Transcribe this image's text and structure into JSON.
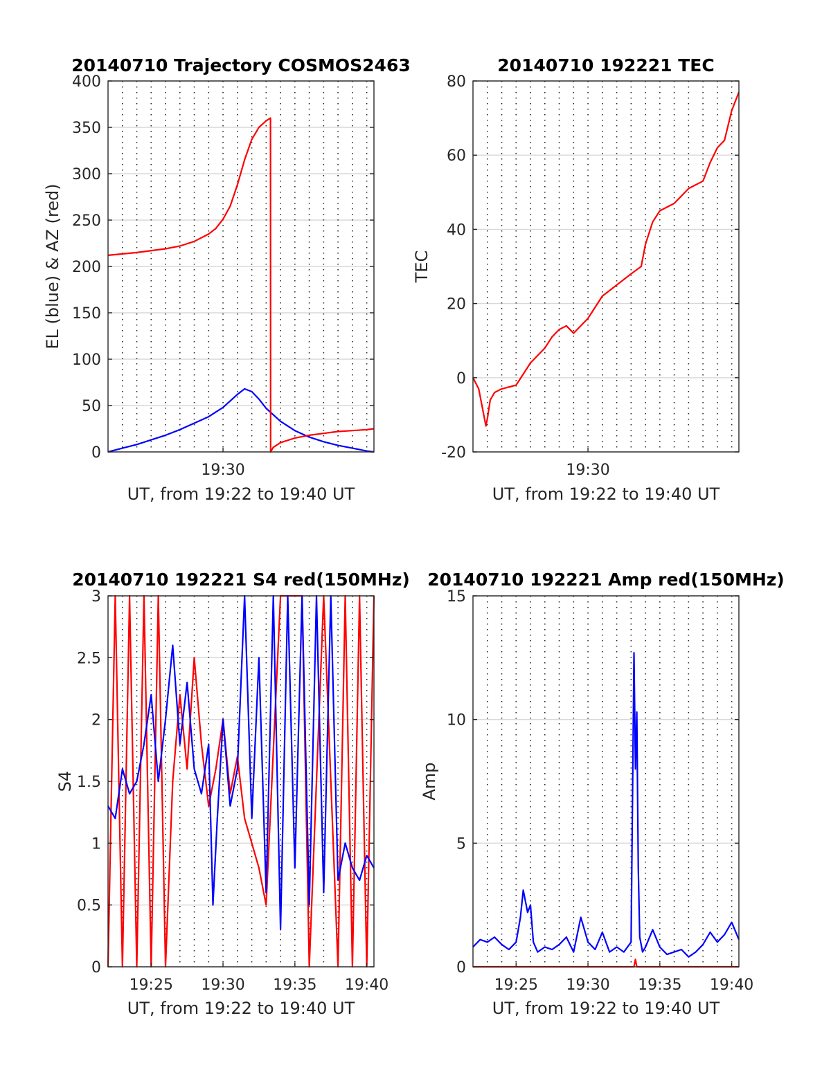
{
  "figure": {
    "background": "#ffffff"
  },
  "chart_data": [
    {
      "id": "traj",
      "type": "line",
      "title": "20140710 Trajectory COSMOS2463",
      "xlabel": "UT, from 19:22 to 19:40 UT",
      "ylabel": "EL (blue) & AZ (red)",
      "xlim": [
        0,
        18.5
      ],
      "ylim": [
        0,
        400
      ],
      "yticks": [
        "0",
        "50",
        "100",
        "150",
        "200",
        "250",
        "300",
        "350",
        "400"
      ],
      "yticks_values": [
        0,
        50,
        100,
        150,
        200,
        250,
        300,
        350,
        400
      ],
      "xticks": [
        {
          "label": "19:30",
          "minute": 8
        }
      ],
      "grid": "y solid, x dotted per minute",
      "series": [
        {
          "color": "#0000ff",
          "x": [
            0,
            1,
            2,
            3,
            4,
            5,
            6,
            7,
            8,
            9,
            9.5,
            10,
            10.5,
            11,
            12,
            13,
            14,
            15,
            16,
            17,
            18,
            18.5
          ],
          "y": [
            0,
            4,
            8,
            13,
            18,
            24,
            31,
            38,
            48,
            62,
            68,
            65,
            57,
            47,
            33,
            23,
            16,
            11,
            7,
            4,
            1,
            0
          ]
        },
        {
          "color": "#ff0000",
          "x": [
            0,
            2,
            4,
            5,
            6,
            7,
            7.5,
            8,
            8.5,
            9,
            9.5,
            10,
            10.5,
            11,
            11.3,
            11.31,
            11.5,
            12,
            13,
            14,
            15,
            16,
            17,
            18,
            18.5
          ],
          "y": [
            212,
            215,
            219,
            222,
            227,
            235,
            241,
            251,
            265,
            288,
            315,
            337,
            350,
            357,
            360,
            0,
            5,
            10,
            15,
            18,
            20,
            22,
            23,
            24,
            25
          ]
        }
      ]
    },
    {
      "id": "tec",
      "type": "line",
      "title": "20140710 192221 TEC",
      "xlabel": "UT, from 19:22 to 19:40 UT",
      "ylabel": "TEC",
      "xlim": [
        0,
        18.5
      ],
      "ylim": [
        -20,
        80
      ],
      "yticks": [
        "-20",
        "0",
        "20",
        "40",
        "60",
        "80"
      ],
      "yticks_values": [
        -20,
        0,
        20,
        40,
        60,
        80
      ],
      "xticks": [
        {
          "label": "19:30",
          "minute": 8
        }
      ],
      "grid": "y solid, x dotted per minute",
      "series": [
        {
          "color": "#ff0000",
          "x": [
            0,
            0.4,
            0.7,
            0.9,
            1.0,
            1.2,
            1.5,
            2.0,
            3.0,
            4.0,
            5.0,
            5.5,
            6.0,
            6.5,
            7.0,
            8.0,
            8.5,
            9.0,
            10.0,
            11.0,
            11.7,
            12.0,
            12.5,
            13.0,
            14.0,
            15.0,
            16.0,
            16.5,
            17.0,
            17.5,
            18.0,
            18.5
          ],
          "y": [
            0,
            -3,
            -9,
            -13,
            -11,
            -6,
            -4,
            -3,
            -2,
            4,
            8,
            11,
            13,
            14,
            12,
            16,
            19,
            22,
            25,
            28,
            30,
            36,
            42,
            45,
            47,
            51,
            53,
            58,
            62,
            64,
            72,
            77
          ]
        }
      ]
    },
    {
      "id": "s4",
      "type": "line",
      "title": "20140710 192221 S4 red(150MHz)",
      "xlabel": "UT, from 19:22 to 19:40 UT",
      "ylabel": "S4",
      "xlim": [
        0,
        18.5
      ],
      "ylim": [
        0,
        3
      ],
      "yticks": [
        "0",
        "0.5",
        "1",
        "1.5",
        "2",
        "2.5",
        "3"
      ],
      "yticks_values": [
        0,
        0.5,
        1,
        1.5,
        2,
        2.5,
        3
      ],
      "xticks": [
        {
          "label": "19:25",
          "minute": 3
        },
        {
          "label": "19:30",
          "minute": 8
        },
        {
          "label": "19:35",
          "minute": 13
        },
        {
          "label": "19:40",
          "minute": 18
        }
      ],
      "grid": "y solid, x dotted per minute",
      "series": [
        {
          "color": "#ff0000",
          "x": [
            0,
            0.5,
            1.0,
            1.5,
            2.0,
            2.5,
            3.0,
            3.5,
            4.0,
            4.5,
            5.0,
            5.5,
            6.0,
            6.5,
            7.0,
            7.5,
            8.0,
            8.5,
            9.0,
            9.5,
            10.0,
            10.5,
            11.0,
            12.0,
            13.0,
            13.5,
            14.0,
            15.0,
            16.0,
            16.5,
            17.0,
            17.5,
            18.0,
            18.5
          ],
          "y": [
            0,
            3,
            0,
            3,
            0,
            3,
            0,
            3,
            0,
            1.5,
            2.2,
            1.6,
            2.5,
            1.8,
            1.3,
            1.6,
            2.0,
            1.4,
            1.7,
            1.2,
            1.0,
            0.8,
            0.5,
            3,
            3,
            3,
            0,
            3,
            0,
            3,
            0,
            3,
            0,
            3
          ]
        },
        {
          "color": "#0000ff",
          "x": [
            0,
            0.5,
            1.0,
            1.5,
            2.0,
            2.5,
            3.0,
            3.5,
            4.0,
            4.5,
            5.0,
            5.5,
            6.0,
            6.5,
            7.0,
            7.3,
            7.6,
            8.0,
            8.5,
            9.0,
            9.5,
            10.0,
            10.5,
            11.0,
            11.5,
            12.0,
            12.5,
            13.0,
            13.5,
            14.0,
            14.5,
            15.0,
            15.5,
            16.0,
            16.5,
            17.0,
            17.5,
            18.0,
            18.5
          ],
          "y": [
            1.3,
            1.2,
            1.6,
            1.4,
            1.5,
            1.8,
            2.2,
            1.5,
            2.0,
            2.6,
            1.8,
            2.3,
            1.6,
            1.4,
            1.8,
            0.5,
            1.2,
            2.0,
            1.3,
            1.6,
            3.0,
            1.2,
            2.5,
            0.6,
            3.0,
            0.3,
            3.0,
            0.8,
            3.0,
            0.5,
            3.0,
            0.6,
            3.0,
            0.7,
            1.0,
            0.8,
            0.7,
            0.9,
            0.8
          ]
        }
      ]
    },
    {
      "id": "amp",
      "type": "line",
      "title": "20140710 192221 Amp red(150MHz)",
      "xlabel": "UT, from 19:22 to 19:40 UT",
      "ylabel": "Amp",
      "xlim": [
        0,
        18.5
      ],
      "ylim": [
        0,
        15
      ],
      "yticks": [
        "0",
        "5",
        "10",
        "15"
      ],
      "yticks_values": [
        0,
        5,
        10,
        15
      ],
      "xticks": [
        {
          "label": "19:25",
          "minute": 3
        },
        {
          "label": "19:30",
          "minute": 8
        },
        {
          "label": "19:35",
          "minute": 13
        },
        {
          "label": "19:40",
          "minute": 18
        }
      ],
      "grid": "y solid, x dotted per minute",
      "series": [
        {
          "color": "#ff0000",
          "x": [
            0,
            5,
            11.2,
            11.3,
            11.4,
            18.5
          ],
          "y": [
            0,
            0,
            0,
            0.3,
            0,
            0
          ]
        },
        {
          "color": "#0000ff",
          "x": [
            0,
            0.5,
            1.0,
            1.5,
            2.0,
            2.5,
            3.0,
            3.3,
            3.5,
            3.8,
            4.0,
            4.2,
            4.5,
            5.0,
            5.5,
            6.0,
            6.5,
            7.0,
            7.5,
            8.0,
            8.5,
            9.0,
            9.5,
            10.0,
            10.5,
            11.0,
            11.2,
            11.3,
            11.4,
            11.5,
            11.6,
            11.8,
            12.0,
            12.5,
            13.0,
            13.5,
            14.0,
            14.5,
            15.0,
            15.5,
            16.0,
            16.5,
            17.0,
            17.5,
            18.0,
            18.5
          ],
          "y": [
            0.8,
            1.1,
            1.0,
            1.2,
            0.9,
            0.7,
            1.0,
            2.0,
            3.1,
            2.2,
            2.5,
            1.0,
            0.6,
            0.8,
            0.7,
            0.9,
            1.2,
            0.6,
            2.0,
            1.0,
            0.7,
            1.4,
            0.6,
            0.8,
            0.6,
            1.0,
            12.7,
            8.0,
            10.3,
            4.0,
            1.2,
            0.6,
            0.8,
            1.5,
            0.8,
            0.5,
            0.6,
            0.7,
            0.4,
            0.6,
            0.9,
            1.4,
            1.0,
            1.3,
            1.8,
            1.1
          ]
        }
      ]
    }
  ]
}
